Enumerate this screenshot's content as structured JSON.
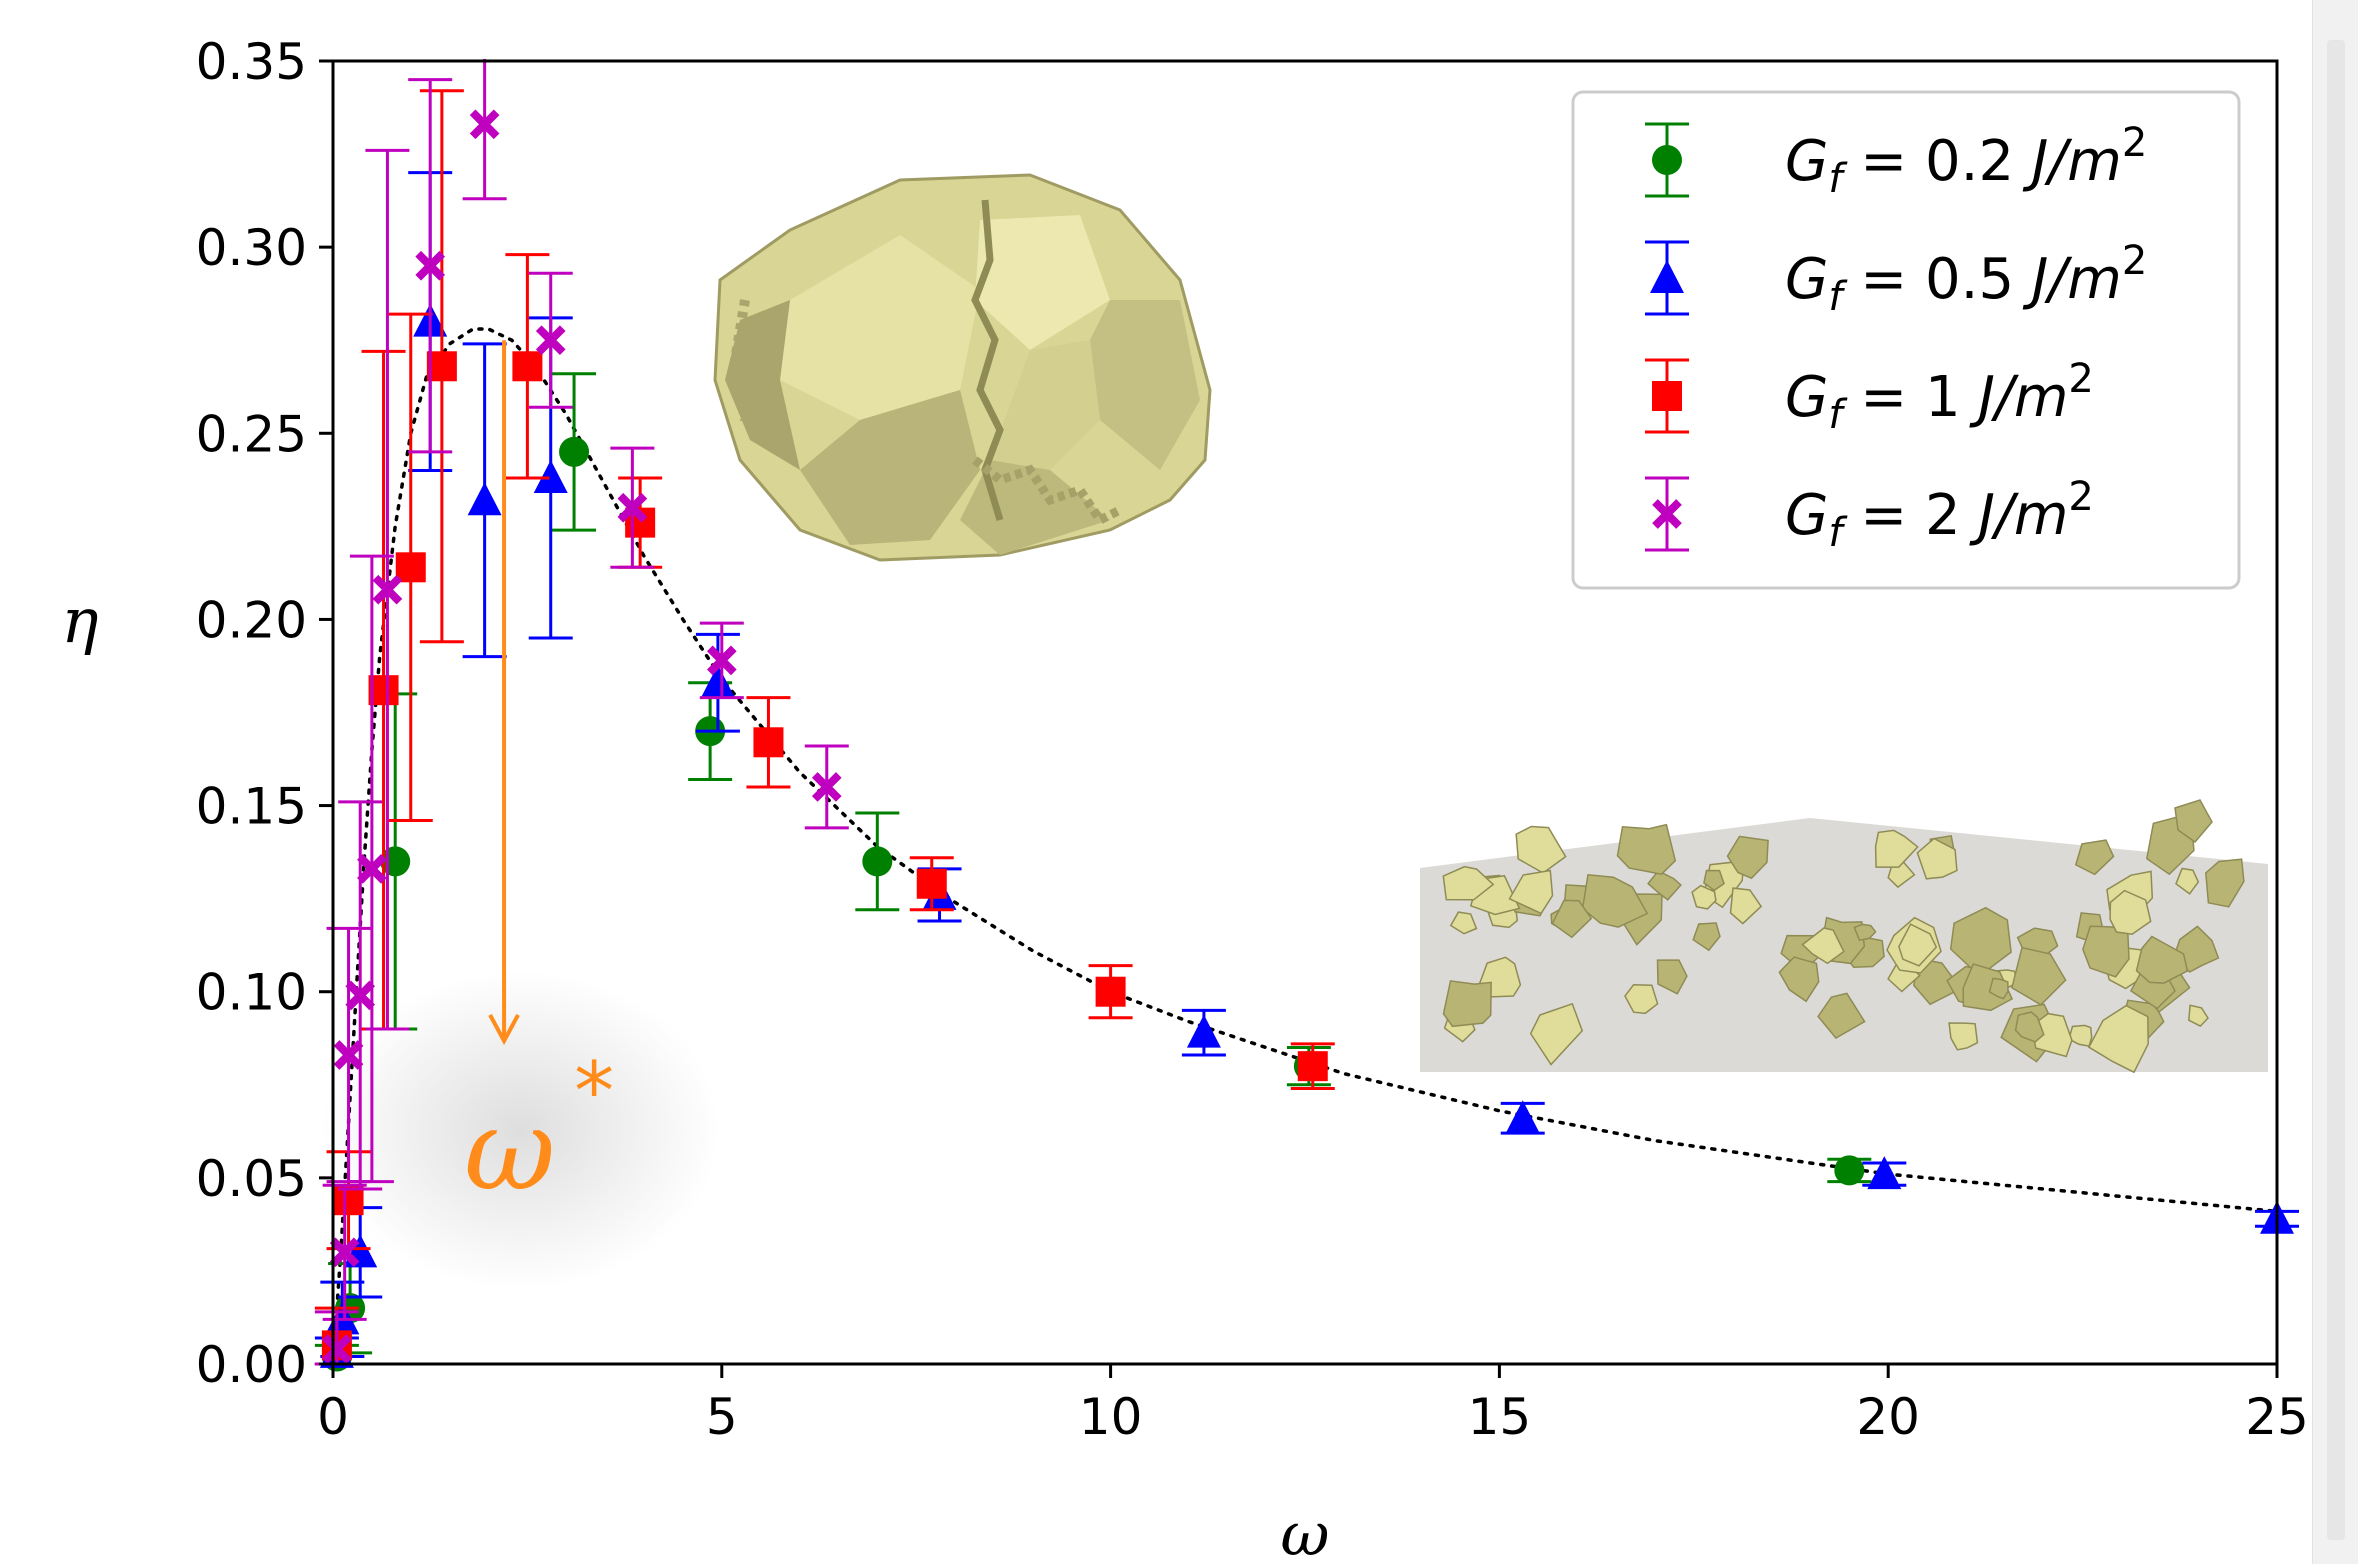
{
  "chart_data": {
    "type": "scatter",
    "xlabel": "ω",
    "ylabel": "η",
    "xlim": [
      0,
      25
    ],
    "ylim": [
      0,
      0.35
    ],
    "x_ticks": [
      0,
      5,
      10,
      15,
      20,
      25
    ],
    "y_ticks": [
      0.0,
      0.05,
      0.1,
      0.15,
      0.2,
      0.25,
      0.3,
      0.35
    ],
    "x_tick_labels": [
      "0",
      "5",
      "10",
      "15",
      "20",
      "25"
    ],
    "y_tick_labels": [
      "0.00",
      "0.05",
      "0.10",
      "0.15",
      "0.20",
      "0.25",
      "0.30",
      "0.35"
    ],
    "grid": false,
    "legend_placement": "top-right",
    "annotation": {
      "text": "ω*",
      "x": 2.2,
      "y_from": 0.275,
      "y_to": 0.09,
      "color": "#ff8c1a"
    },
    "fit_curve": [
      [
        0.0,
        0.0
      ],
      [
        0.1,
        0.03
      ],
      [
        0.2,
        0.065
      ],
      [
        0.3,
        0.1
      ],
      [
        0.4,
        0.135
      ],
      [
        0.5,
        0.165
      ],
      [
        0.6,
        0.19
      ],
      [
        0.8,
        0.225
      ],
      [
        1.0,
        0.25
      ],
      [
        1.2,
        0.265
      ],
      [
        1.5,
        0.274
      ],
      [
        1.8,
        0.278
      ],
      [
        2.0,
        0.278
      ],
      [
        2.3,
        0.275
      ],
      [
        2.6,
        0.268
      ],
      [
        3.0,
        0.255
      ],
      [
        3.5,
        0.236
      ],
      [
        4.0,
        0.217
      ],
      [
        4.5,
        0.2
      ],
      [
        5.0,
        0.184
      ],
      [
        6.0,
        0.159
      ],
      [
        7.0,
        0.139
      ],
      [
        8.0,
        0.124
      ],
      [
        9.0,
        0.111
      ],
      [
        10.0,
        0.1
      ],
      [
        11.0,
        0.092
      ],
      [
        12.0,
        0.085
      ],
      [
        13.0,
        0.078
      ],
      [
        14.0,
        0.073
      ],
      [
        15.0,
        0.068
      ],
      [
        16.0,
        0.064
      ],
      [
        17.0,
        0.06
      ],
      [
        18.0,
        0.057
      ],
      [
        19.0,
        0.054
      ],
      [
        20.0,
        0.051
      ],
      [
        21.0,
        0.049
      ],
      [
        22.0,
        0.047
      ],
      [
        23.0,
        0.045
      ],
      [
        24.0,
        0.043
      ],
      [
        25.0,
        0.041
      ]
    ],
    "series": [
      {
        "name": "G_f = 0.2 J/m²",
        "legend_label": "Gf = 0.2 J/m2",
        "marker": "circle",
        "color": "#008000",
        "points": [
          {
            "x": 0.05,
            "y": 0.002,
            "err": 0.003
          },
          {
            "x": 0.22,
            "y": 0.015,
            "err": 0.012
          },
          {
            "x": 0.8,
            "y": 0.135,
            "err": 0.045
          },
          {
            "x": 3.1,
            "y": 0.245,
            "err": 0.021
          },
          {
            "x": 4.85,
            "y": 0.17,
            "err": 0.013
          },
          {
            "x": 7.0,
            "y": 0.135,
            "err": 0.013
          },
          {
            "x": 12.55,
            "y": 0.08,
            "err": 0.005
          },
          {
            "x": 19.5,
            "y": 0.052,
            "err": 0.003
          }
        ]
      },
      {
        "name": "G_f = 0.5 J/m²",
        "legend_label": "Gf = 0.5 J/m2",
        "marker": "triangle",
        "color": "#0000ff",
        "points": [
          {
            "x": 0.05,
            "y": 0.003,
            "err": 0.004
          },
          {
            "x": 0.12,
            "y": 0.012,
            "err": 0.01
          },
          {
            "x": 0.35,
            "y": 0.03,
            "err": 0.012
          },
          {
            "x": 1.25,
            "y": 0.28,
            "err": 0.04
          },
          {
            "x": 1.95,
            "y": 0.232,
            "err": 0.042
          },
          {
            "x": 2.8,
            "y": 0.238,
            "err": 0.043
          },
          {
            "x": 4.95,
            "y": 0.183,
            "err": 0.013
          },
          {
            "x": 7.8,
            "y": 0.126,
            "err": 0.007
          },
          {
            "x": 11.2,
            "y": 0.089,
            "err": 0.006
          },
          {
            "x": 15.3,
            "y": 0.066,
            "err": 0.004
          },
          {
            "x": 19.95,
            "y": 0.051,
            "err": 0.003
          },
          {
            "x": 25.0,
            "y": 0.039,
            "err": 0.002
          }
        ]
      },
      {
        "name": "G_f = 1 J/m²",
        "legend_label": "Gf = 1 J/m2",
        "marker": "square",
        "color": "#ff0000",
        "points": [
          {
            "x": 0.05,
            "y": 0.005,
            "err": 0.01
          },
          {
            "x": 0.2,
            "y": 0.044,
            "err": 0.013
          },
          {
            "x": 0.65,
            "y": 0.181,
            "err": 0.091
          },
          {
            "x": 1.0,
            "y": 0.214,
            "err": 0.068
          },
          {
            "x": 1.4,
            "y": 0.268,
            "err": 0.074
          },
          {
            "x": 2.5,
            "y": 0.268,
            "err": 0.03
          },
          {
            "x": 3.95,
            "y": 0.226,
            "err": 0.012
          },
          {
            "x": 5.6,
            "y": 0.167,
            "err": 0.012
          },
          {
            "x": 7.7,
            "y": 0.129,
            "err": 0.007
          },
          {
            "x": 10.0,
            "y": 0.1,
            "err": 0.007
          },
          {
            "x": 12.6,
            "y": 0.08,
            "err": 0.006
          }
        ]
      },
      {
        "name": "G_f = 2 J/m²",
        "legend_label": "Gf = 2 J/m2",
        "marker": "x",
        "color": "#bf00bf",
        "points": [
          {
            "x": 0.05,
            "y": 0.004,
            "err": 0.01
          },
          {
            "x": 0.15,
            "y": 0.03,
            "err": 0.018
          },
          {
            "x": 0.2,
            "y": 0.083,
            "err": 0.034
          },
          {
            "x": 0.35,
            "y": 0.099,
            "err": 0.052
          },
          {
            "x": 0.5,
            "y": 0.133,
            "err": 0.084
          },
          {
            "x": 0.7,
            "y": 0.208,
            "err": 0.118
          },
          {
            "x": 1.25,
            "y": 0.295,
            "err": 0.05
          },
          {
            "x": 1.95,
            "y": 0.333,
            "err": 0.02
          },
          {
            "x": 2.8,
            "y": 0.275,
            "err": 0.018
          },
          {
            "x": 3.85,
            "y": 0.23,
            "err": 0.016
          },
          {
            "x": 5.0,
            "y": 0.189,
            "err": 0.01
          },
          {
            "x": 6.35,
            "y": 0.155,
            "err": 0.011
          }
        ]
      }
    ]
  },
  "legend": [
    {
      "prefix": "G",
      "sub": "f",
      "mid": " = 0.2 J/m",
      "sup": "2"
    },
    {
      "prefix": "G",
      "sub": "f",
      "mid": " = 0.5 J/m",
      "sup": "2"
    },
    {
      "prefix": "G",
      "sub": "f",
      "mid": " = 1 J/m",
      "sup": "2"
    },
    {
      "prefix": "G",
      "sub": "f",
      "mid": " = 2 J/m",
      "sup": "2"
    }
  ],
  "colors": {
    "fragment_fill": "#e0dd9b",
    "fragment_shade": "#b8b574",
    "fragment_dark": "#8e8b55",
    "floor": "#dcdad6"
  }
}
